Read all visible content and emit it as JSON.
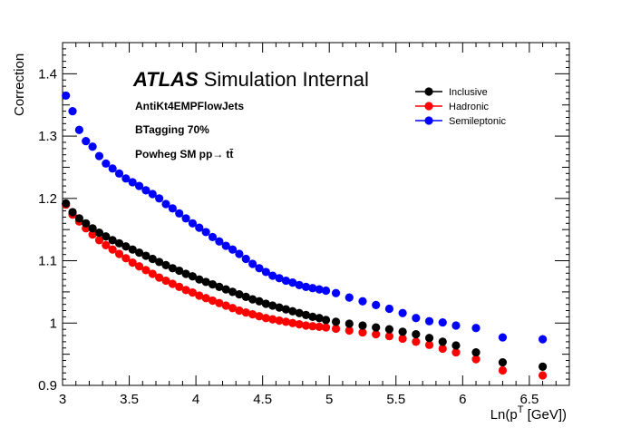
{
  "chart_data": {
    "type": "scatter",
    "title": "",
    "xlabel": "Ln(p",
    "xlabel_sup": "T",
    "xlabel_tail": " [GeV])",
    "ylabel": "Correction",
    "xlim": [
      3.0,
      6.8
    ],
    "ylim": [
      0.9,
      1.45
    ],
    "x_ticks": [
      3,
      3.5,
      4,
      4.5,
      5,
      5.5,
      6,
      6.5
    ],
    "x_tick_labels": [
      "3",
      "3.5",
      "4",
      "4.5",
      "5",
      "5.5",
      "6",
      "6.5"
    ],
    "y_ticks": [
      0.9,
      1.0,
      1.1,
      1.2,
      1.3,
      1.4
    ],
    "y_tick_labels": [
      "0.9",
      "1",
      "1.1",
      "1.2",
      "1.3",
      "1.4"
    ],
    "grid": false,
    "legend_position": "top-right",
    "annotations": {
      "atlas_bold": "ATLAS",
      "atlas_rest": "Simulation Internal",
      "jets": "AntiKt4EMPFlowJets",
      "tagging": "BTagging 70%",
      "sample": "Powheg SM pp",
      "sample_arrow": "→",
      "sample_tail": "tt̄"
    },
    "colors": {
      "Inclusive": "#000000",
      "Hadronic": "#ff0000",
      "Semileptonic": "#0000ff"
    },
    "series": [
      {
        "name": "Inclusive",
        "x": [
          3.025,
          3.075,
          3.125,
          3.175,
          3.225,
          3.275,
          3.325,
          3.375,
          3.425,
          3.475,
          3.525,
          3.575,
          3.625,
          3.675,
          3.725,
          3.775,
          3.825,
          3.875,
          3.925,
          3.975,
          4.025,
          4.075,
          4.125,
          4.175,
          4.225,
          4.275,
          4.325,
          4.375,
          4.425,
          4.475,
          4.525,
          4.575,
          4.625,
          4.675,
          4.725,
          4.775,
          4.825,
          4.875,
          4.925,
          4.975,
          5.05,
          5.15,
          5.25,
          5.35,
          5.45,
          5.55,
          5.65,
          5.75,
          5.85,
          5.95,
          6.1,
          6.3,
          6.6
        ],
        "y": [
          1.192,
          1.178,
          1.168,
          1.16,
          1.152,
          1.145,
          1.139,
          1.133,
          1.128,
          1.123,
          1.118,
          1.113,
          1.108,
          1.103,
          1.098,
          1.093,
          1.088,
          1.084,
          1.079,
          1.075,
          1.07,
          1.066,
          1.062,
          1.058,
          1.054,
          1.05,
          1.046,
          1.042,
          1.038,
          1.035,
          1.031,
          1.028,
          1.025,
          1.022,
          1.019,
          1.016,
          1.013,
          1.01,
          1.008,
          1.005,
          1.002,
          0.999,
          0.996,
          0.993,
          0.99,
          0.986,
          0.982,
          0.976,
          0.97,
          0.964,
          0.953,
          0.937,
          0.93
        ]
      },
      {
        "name": "Hadronic",
        "x": [
          3.025,
          3.075,
          3.125,
          3.175,
          3.225,
          3.275,
          3.325,
          3.375,
          3.425,
          3.475,
          3.525,
          3.575,
          3.625,
          3.675,
          3.725,
          3.775,
          3.825,
          3.875,
          3.925,
          3.975,
          4.025,
          4.075,
          4.125,
          4.175,
          4.225,
          4.275,
          4.325,
          4.375,
          4.425,
          4.475,
          4.525,
          4.575,
          4.625,
          4.675,
          4.725,
          4.775,
          4.825,
          4.875,
          4.925,
          4.975,
          5.05,
          5.15,
          5.25,
          5.35,
          5.45,
          5.55,
          5.65,
          5.75,
          5.85,
          5.95,
          6.1,
          6.3,
          6.6
        ],
        "y": [
          1.19,
          1.174,
          1.163,
          1.152,
          1.142,
          1.133,
          1.125,
          1.118,
          1.111,
          1.104,
          1.097,
          1.091,
          1.085,
          1.079,
          1.073,
          1.068,
          1.063,
          1.058,
          1.053,
          1.049,
          1.044,
          1.04,
          1.036,
          1.032,
          1.028,
          1.024,
          1.02,
          1.017,
          1.014,
          1.011,
          1.008,
          1.006,
          1.004,
          1.002,
          1.0,
          0.998,
          0.996,
          0.995,
          0.994,
          0.993,
          0.991,
          0.988,
          0.985,
          0.982,
          0.979,
          0.975,
          0.97,
          0.965,
          0.959,
          0.953,
          0.942,
          0.924,
          0.916
        ]
      },
      {
        "name": "Semileptonic",
        "x": [
          3.025,
          3.075,
          3.125,
          3.175,
          3.225,
          3.275,
          3.325,
          3.375,
          3.425,
          3.475,
          3.525,
          3.575,
          3.625,
          3.675,
          3.725,
          3.775,
          3.825,
          3.875,
          3.925,
          3.975,
          4.025,
          4.075,
          4.125,
          4.175,
          4.225,
          4.275,
          4.325,
          4.375,
          4.425,
          4.475,
          4.525,
          4.575,
          4.625,
          4.675,
          4.725,
          4.775,
          4.825,
          4.875,
          4.925,
          4.975,
          5.05,
          5.15,
          5.25,
          5.35,
          5.45,
          5.55,
          5.65,
          5.75,
          5.85,
          5.95,
          6.1,
          6.3,
          6.6
        ],
        "y": [
          1.365,
          1.34,
          1.31,
          1.292,
          1.283,
          1.268,
          1.256,
          1.248,
          1.24,
          1.232,
          1.226,
          1.22,
          1.213,
          1.207,
          1.2,
          1.191,
          1.184,
          1.176,
          1.168,
          1.16,
          1.153,
          1.146,
          1.138,
          1.131,
          1.124,
          1.118,
          1.111,
          1.103,
          1.095,
          1.088,
          1.082,
          1.076,
          1.072,
          1.068,
          1.065,
          1.061,
          1.058,
          1.056,
          1.054,
          1.052,
          1.048,
          1.041,
          1.035,
          1.029,
          1.023,
          1.016,
          1.008,
          1.003,
          1.001,
          0.996,
          0.992,
          0.977,
          0.974
        ]
      }
    ]
  }
}
